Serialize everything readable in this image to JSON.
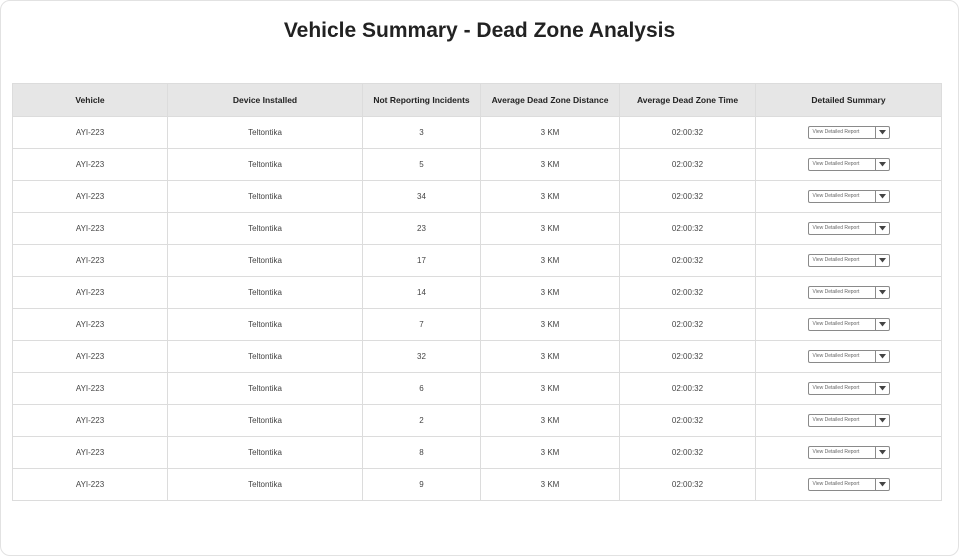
{
  "page": {
    "title": "Vehicle Summary - Dead Zone Analysis"
  },
  "table": {
    "columns": [
      "Vehicle",
      "Device Installed",
      "Not Reporting Incidents",
      "Average Dead Zone Distance",
      "Average Dead Zone Time",
      "Detailed Summary"
    ],
    "rows": [
      {
        "vehicle": "AYI-223",
        "device": "Teltontika",
        "incidents": "3",
        "distance": "3 KM",
        "time": "02:00:32",
        "summary": "View Detailed Report"
      },
      {
        "vehicle": "AYI-223",
        "device": "Teltontika",
        "incidents": "5",
        "distance": "3 KM",
        "time": "02:00:32",
        "summary": "View Detailed Report"
      },
      {
        "vehicle": "AYI-223",
        "device": "Teltontika",
        "incidents": "34",
        "distance": "3 KM",
        "time": "02:00:32",
        "summary": "View Detailed Report"
      },
      {
        "vehicle": "AYI-223",
        "device": "Teltontika",
        "incidents": "23",
        "distance": "3 KM",
        "time": "02:00:32",
        "summary": "View Detailed Report"
      },
      {
        "vehicle": "AYI-223",
        "device": "Teltontika",
        "incidents": "17",
        "distance": "3 KM",
        "time": "02:00:32",
        "summary": "View Detailed Report"
      },
      {
        "vehicle": "AYI-223",
        "device": "Teltontika",
        "incidents": "14",
        "distance": "3 KM",
        "time": "02:00:32",
        "summary": "View Detailed Report"
      },
      {
        "vehicle": "AYI-223",
        "device": "Teltontika",
        "incidents": "7",
        "distance": "3 KM",
        "time": "02:00:32",
        "summary": "View Detailed Report"
      },
      {
        "vehicle": "AYI-223",
        "device": "Teltontika",
        "incidents": "32",
        "distance": "3 KM",
        "time": "02:00:32",
        "summary": "View Detailed Report"
      },
      {
        "vehicle": "AYI-223",
        "device": "Teltontika",
        "incidents": "6",
        "distance": "3 KM",
        "time": "02:00:32",
        "summary": "View Detailed Report"
      },
      {
        "vehicle": "AYI-223",
        "device": "Teltontika",
        "incidents": "2",
        "distance": "3 KM",
        "time": "02:00:32",
        "summary": "View Detailed Report"
      },
      {
        "vehicle": "AYI-223",
        "device": "Teltontika",
        "incidents": "8",
        "distance": "3 KM",
        "time": "02:00:32",
        "summary": "View Detailed Report"
      },
      {
        "vehicle": "AYI-223",
        "device": "Teltontika",
        "incidents": "9",
        "distance": "3 KM",
        "time": "02:00:32",
        "summary": "View Detailed Report"
      }
    ]
  },
  "icons": {
    "dropdown": "chevron-down-icon"
  },
  "colors": {
    "header_bg": "#e6e6e6",
    "border": "#dcdcdc",
    "text": "#333333"
  }
}
